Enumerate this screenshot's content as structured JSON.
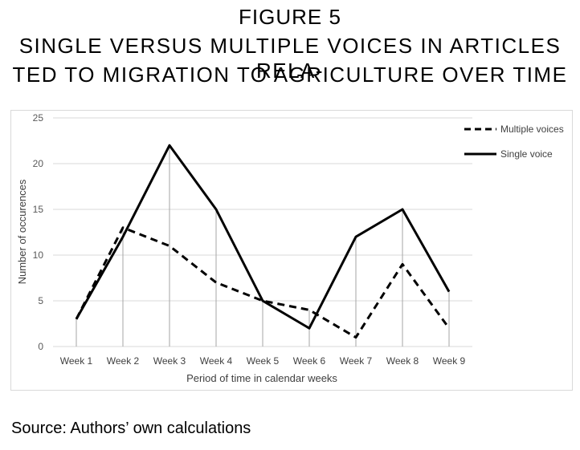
{
  "figure": {
    "label": "FIGURE 5",
    "title_line1": "SINGLE VERSUS MULTIPLE VOICES IN ARTICLES RELA-",
    "title_line2": "TED TO MIGRATION TO AGRICULTURE OVER TIME"
  },
  "source": "Source: Authors’ own calculations",
  "chart_data": {
    "type": "line",
    "title": "SINGLE VERSUS MULTIPLE VOICES IN ARTICLES RELATED TO MIGRATION TO AGRICULTURE OVER TIME",
    "xlabel": "Period of time in calendar weeks",
    "ylabel": "Number of occurences",
    "categories": [
      "Week 1",
      "Week 2",
      "Week 3",
      "Week 4",
      "Week 5",
      "Week 6",
      "Week 7",
      "Week 8",
      "Week 9"
    ],
    "ylim": [
      0,
      25
    ],
    "yticks": [
      "0",
      "5",
      "10",
      "15",
      "20",
      "25"
    ],
    "grid": "horizontal and vertical",
    "legend_position": "top-right",
    "series": [
      {
        "name": "Multiple voices",
        "style": "dashed",
        "color": "#000000",
        "values": [
          3,
          13,
          11,
          7,
          5,
          4,
          1,
          9,
          2
        ]
      },
      {
        "name": "Single voice",
        "style": "solid",
        "color": "#000000",
        "values": [
          3,
          12,
          22,
          15,
          5,
          2,
          12,
          15,
          6
        ]
      }
    ]
  }
}
